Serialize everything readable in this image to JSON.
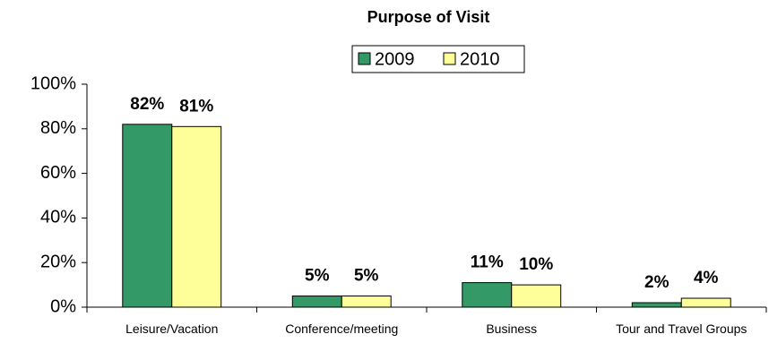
{
  "chart_data": {
    "type": "bar",
    "title": "Purpose of Visit",
    "categories": [
      "Leisure/Vacation",
      "Conference/meeting",
      "Business",
      "Tour and Travel Groups"
    ],
    "series": [
      {
        "name": "2009",
        "color": "#339966",
        "values": [
          82,
          5,
          11,
          2
        ],
        "value_labels": [
          "82%",
          "5%",
          "11%",
          "2%"
        ]
      },
      {
        "name": "2010",
        "color": "#ffff99",
        "values": [
          81,
          5,
          10,
          4
        ],
        "value_labels": [
          "81%",
          "5%",
          "10%",
          "4%"
        ]
      }
    ],
    "ylim": [
      0,
      100
    ],
    "yticks": [
      {
        "value": 0,
        "label": "0%"
      },
      {
        "value": 20,
        "label": "20%"
      },
      {
        "value": 40,
        "label": "40%"
      },
      {
        "value": 60,
        "label": "60%"
      },
      {
        "value": 80,
        "label": "80%"
      },
      {
        "value": 100,
        "label": "100%"
      }
    ],
    "grid": false,
    "legend": "top"
  }
}
